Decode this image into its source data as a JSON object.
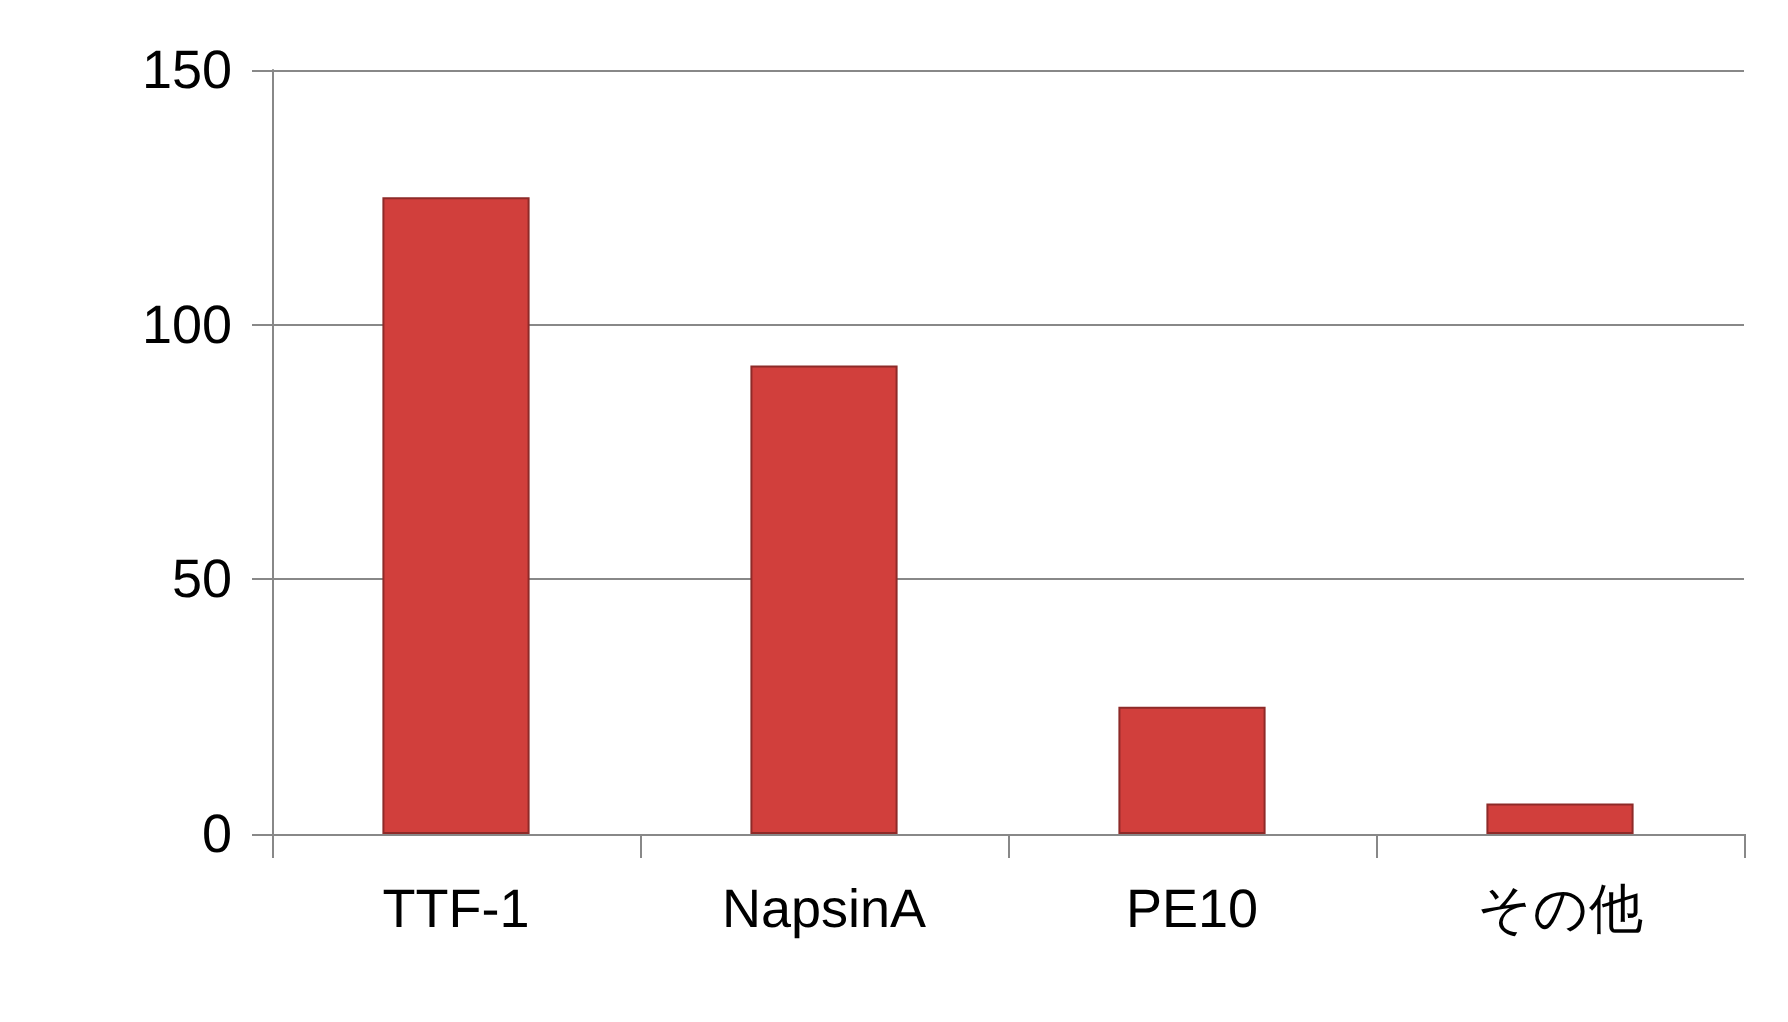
{
  "chart_data": {
    "type": "bar",
    "categories": [
      "TTF-1",
      "NapsinA",
      "PE10",
      "その他"
    ],
    "values": [
      125,
      92,
      25,
      6
    ],
    "color": "#d13f3c",
    "ylim": [
      0,
      150
    ],
    "yticks": [
      0,
      50,
      100,
      150
    ],
    "grid": "y"
  }
}
